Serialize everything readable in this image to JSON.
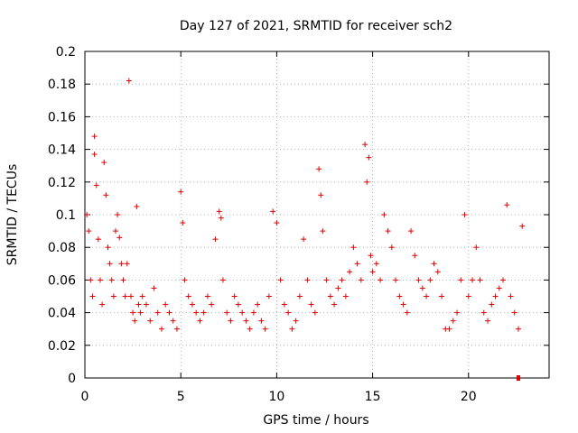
{
  "chart_data": {
    "type": "scatter",
    "title": "Day 127 of 2021, SRMTID for receiver sch2",
    "xlabel": "GPS time / hours",
    "ylabel": "SRMTID / TECUs",
    "xlim": [
      0,
      24.2
    ],
    "ylim": [
      0,
      0.2
    ],
    "xticks": [
      0,
      5,
      10,
      15,
      20
    ],
    "xtick_labels": [
      "0",
      "5",
      "10",
      "15",
      "20"
    ],
    "yticks": [
      0,
      0.02,
      0.04,
      0.06,
      0.08,
      0.1,
      0.12,
      0.14,
      0.16,
      0.18,
      0.2
    ],
    "ytick_labels": [
      "0",
      "0.02",
      "0.04",
      "0.06",
      "0.08",
      "0.1",
      "0.12",
      "0.14",
      "0.16",
      "0.18",
      "0.2"
    ],
    "grid": true,
    "marker": "+",
    "color": "#e00000",
    "series": [
      {
        "name": "SRMTID",
        "x": [
          0.1,
          0.2,
          0.3,
          0.4,
          0.5,
          0.5,
          0.6,
          0.7,
          0.8,
          0.9,
          1.0,
          1.1,
          1.2,
          1.3,
          1.4,
          1.5,
          1.6,
          1.7,
          1.8,
          1.9,
          2.0,
          2.1,
          2.2,
          2.3,
          2.4,
          2.5,
          2.6,
          2.7,
          2.8,
          2.9,
          3.0,
          3.2,
          3.4,
          3.6,
          3.8,
          4.0,
          4.2,
          4.4,
          4.6,
          4.8,
          5.0,
          5.1,
          5.2,
          5.4,
          5.6,
          5.8,
          6.0,
          6.2,
          6.4,
          6.6,
          6.8,
          7.0,
          7.1,
          7.2,
          7.4,
          7.6,
          7.8,
          8.0,
          8.2,
          8.4,
          8.6,
          8.8,
          9.0,
          9.2,
          9.4,
          9.6,
          9.8,
          10.0,
          10.2,
          10.4,
          10.6,
          10.8,
          11.0,
          11.2,
          11.4,
          11.6,
          11.8,
          12.0,
          12.2,
          12.3,
          12.4,
          12.6,
          12.8,
          13.0,
          13.2,
          13.4,
          13.6,
          13.8,
          14.0,
          14.2,
          14.4,
          14.6,
          14.7,
          14.8,
          14.9,
          15.0,
          15.2,
          15.4,
          15.6,
          15.8,
          16.0,
          16.2,
          16.4,
          16.6,
          16.8,
          17.0,
          17.2,
          17.4,
          17.6,
          17.8,
          18.0,
          18.2,
          18.4,
          18.6,
          18.8,
          19.0,
          19.2,
          19.4,
          19.6,
          19.8,
          20.0,
          20.2,
          20.4,
          20.6,
          20.8,
          21.0,
          21.2,
          21.4,
          21.6,
          21.8,
          22.0,
          22.2,
          22.4,
          22.6,
          22.8
        ],
        "y": [
          0.1,
          0.09,
          0.06,
          0.05,
          0.137,
          0.148,
          0.118,
          0.085,
          0.06,
          0.045,
          0.132,
          0.112,
          0.08,
          0.07,
          0.06,
          0.05,
          0.09,
          0.1,
          0.086,
          0.07,
          0.06,
          0.05,
          0.07,
          0.182,
          0.05,
          0.04,
          0.035,
          0.105,
          0.045,
          0.04,
          0.05,
          0.045,
          0.035,
          0.055,
          0.04,
          0.03,
          0.045,
          0.04,
          0.035,
          0.03,
          0.114,
          0.095,
          0.06,
          0.05,
          0.045,
          0.04,
          0.035,
          0.04,
          0.05,
          0.045,
          0.085,
          0.102,
          0.098,
          0.06,
          0.04,
          0.035,
          0.05,
          0.045,
          0.04,
          0.035,
          0.03,
          0.04,
          0.045,
          0.035,
          0.03,
          0.05,
          0.102,
          0.095,
          0.06,
          0.045,
          0.04,
          0.03,
          0.035,
          0.05,
          0.085,
          0.06,
          0.045,
          0.04,
          0.128,
          0.112,
          0.09,
          0.06,
          0.05,
          0.045,
          0.055,
          0.06,
          0.05,
          0.065,
          0.08,
          0.07,
          0.06,
          0.143,
          0.12,
          0.135,
          0.075,
          0.065,
          0.07,
          0.06,
          0.1,
          0.09,
          0.08,
          0.06,
          0.05,
          0.045,
          0.04,
          0.09,
          0.075,
          0.06,
          0.055,
          0.05,
          0.06,
          0.07,
          0.065,
          0.05,
          0.03,
          0.03,
          0.035,
          0.04,
          0.06,
          0.1,
          0.05,
          0.06,
          0.08,
          0.06,
          0.04,
          0.035,
          0.045,
          0.05,
          0.055,
          0.06,
          0.106,
          0.05,
          0.04,
          0.03,
          0.093
        ]
      }
    ],
    "outlier": {
      "x": 22.6,
      "y": 0.0
    }
  }
}
